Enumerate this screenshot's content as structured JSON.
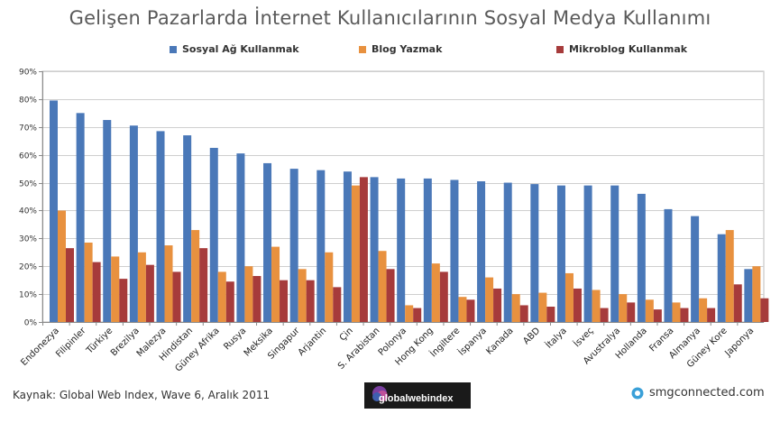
{
  "chart_data": {
    "type": "bar",
    "title": "Gelişen Pazarlarda İnternet Kullanıcılarının Sosyal Medya Kullanımı",
    "xlabel": "",
    "ylabel": "",
    "ylim": [
      0,
      90
    ],
    "yticks": [
      "0%",
      "10%",
      "20%",
      "30%",
      "40%",
      "50%",
      "60%",
      "70%",
      "80%",
      "90%"
    ],
    "grid": true,
    "legend_position": "top",
    "categories": [
      "Endonezya",
      "Filipinler",
      "Türkiye",
      "Brezilya",
      "Malezya",
      "Hindistan",
      "Güney Afrika",
      "Rusya",
      "Meksika",
      "Singapur",
      "Arjantin",
      "Çin",
      "S. Arabistan",
      "Polonya",
      "Hong Kong",
      "İngiltere",
      "İspanya",
      "Kanada",
      "ABD",
      "İtalya",
      "İsveç",
      "Avustralya",
      "Hollanda",
      "Fransa",
      "Almanya",
      "Güney Kore",
      "Japonya"
    ],
    "series": [
      {
        "name": "Sosyal Ağ Kullanmak",
        "color": "#4a78b8",
        "values": [
          79.5,
          75,
          72.5,
          70.5,
          68.5,
          67,
          62.5,
          60.5,
          57,
          55,
          54.5,
          54,
          52,
          51.5,
          51.5,
          51,
          50.5,
          50,
          49.5,
          49,
          49,
          49,
          46,
          40.5,
          38,
          31.5,
          19
        ]
      },
      {
        "name": "Blog Yazmak",
        "color": "#e8913f",
        "values": [
          40,
          28.5,
          23.5,
          25,
          27.5,
          33,
          18,
          20,
          27,
          19,
          25,
          49,
          25.5,
          6,
          21,
          9,
          16,
          10,
          10.5,
          17.5,
          11.5,
          10,
          8,
          7,
          8.5,
          33,
          20
        ]
      },
      {
        "name": "Mikroblog Kullanmak",
        "color": "#a63b3b",
        "values": [
          26.5,
          21.5,
          15.5,
          20.5,
          18,
          26.5,
          14.5,
          16.5,
          15,
          15,
          12.5,
          52,
          19,
          5,
          18,
          8,
          12,
          6,
          5.5,
          12,
          5,
          7,
          4.5,
          5,
          5,
          13.5,
          8.5
        ]
      }
    ]
  },
  "footer": {
    "source": "Kaynak: Global Web Index, Wave 6, Aralık 2011",
    "logo_text": "globalwebindex",
    "site": "smgconnected.com"
  }
}
